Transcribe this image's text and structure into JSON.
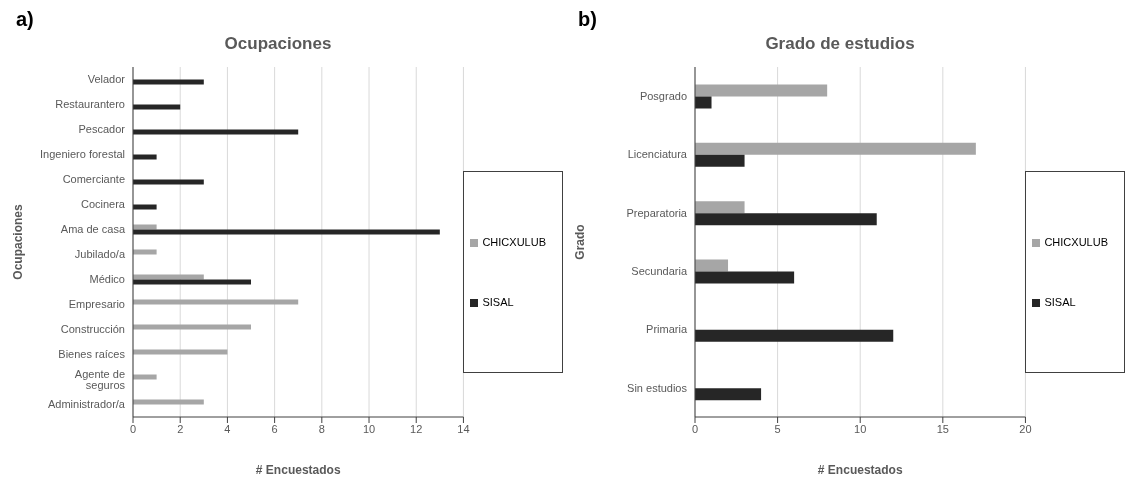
{
  "chart_data": [
    {
      "type": "bar",
      "orientation": "horizontal",
      "annotations": [
        "a)"
      ],
      "title": "Ocupaciones",
      "xlabel": "# Encuestados",
      "ylabel": "Ocupaciones",
      "categories": [
        "Velador",
        "Restaurantero",
        "Pescador",
        "Ingeniero forestal",
        "Comerciante",
        "Cocinera",
        "Ama de casa",
        "Jubilado/a",
        "Médico",
        "Empresario",
        "Construcción",
        "Bienes raíces",
        "Agente de seguros",
        "Administrador/a"
      ],
      "series": [
        {
          "name": "CHICXULUB",
          "color": "#a6a6a6",
          "values": [
            null,
            null,
            null,
            null,
            null,
            null,
            1,
            1,
            3,
            7,
            5,
            4,
            1,
            3
          ]
        },
        {
          "name": "SISAL",
          "color": "#262626",
          "values": [
            3,
            2,
            7,
            1,
            3,
            1,
            13,
            null,
            5,
            null,
            null,
            null,
            null,
            null
          ]
        }
      ],
      "xlim": [
        0,
        14
      ],
      "xticks": [
        0,
        2,
        4,
        6,
        8,
        10,
        12,
        14
      ],
      "grid": "x",
      "legend": "right"
    },
    {
      "type": "bar",
      "orientation": "horizontal",
      "annotations": [
        "b)"
      ],
      "title": "Grado de estudios",
      "xlabel": "# Encuestados",
      "ylabel": "Grado",
      "categories": [
        "Posgrado",
        "Licenciatura",
        "Preparatoria",
        "Secundaria",
        "Primaria",
        "Sin estudios"
      ],
      "series": [
        {
          "name": "CHICXULUB",
          "color": "#a6a6a6",
          "values": [
            8,
            17,
            3,
            2,
            null,
            null
          ]
        },
        {
          "name": "SISAL",
          "color": "#262626",
          "values": [
            1,
            3,
            11,
            6,
            12,
            4
          ]
        }
      ],
      "xlim": [
        0,
        20
      ],
      "xticks": [
        0,
        5,
        10,
        15,
        20
      ],
      "grid": "x",
      "legend": "right"
    }
  ]
}
